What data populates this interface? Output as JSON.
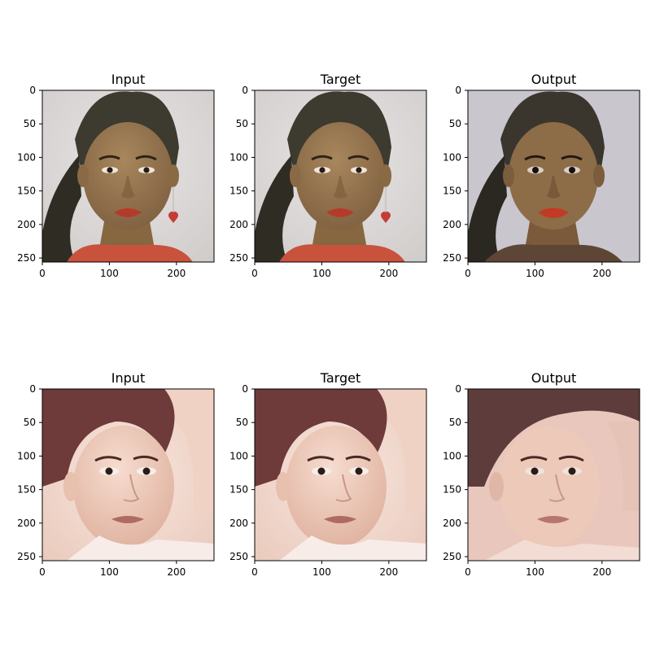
{
  "figure": {
    "rows": [
      {
        "panels": [
          {
            "title": "Input",
            "image": "portrait-woman-dark-hair-red-lips-heart-earring"
          },
          {
            "title": "Target",
            "image": "portrait-woman-dark-hair-red-lips-heart-earring"
          },
          {
            "title": "Output",
            "image": "portrait-woman-dark-hair-red-lips-reconstructed"
          }
        ]
      },
      {
        "panels": [
          {
            "title": "Input",
            "image": "portrait-woman-brown-hair-arm-raised"
          },
          {
            "title": "Target",
            "image": "portrait-woman-brown-hair-arm-raised"
          },
          {
            "title": "Output",
            "image": "portrait-woman-brown-hair-reconstructed"
          }
        ]
      }
    ],
    "x_ticks": [
      "0",
      "100",
      "200"
    ],
    "y_ticks": [
      "0",
      "50",
      "100",
      "150",
      "200",
      "250"
    ]
  },
  "palette": {
    "bg_face1": "#d8d6d6",
    "hair_face1": "#3d3a30",
    "skin_face1": "#9a7a52",
    "lips": "#b63a2a",
    "shirt": "#c8523c",
    "bg_face2": "#f3dcd0",
    "hair_face2": "#6e3a3a",
    "skin_face2": "#f0cfbf",
    "eye": "#2a1c18"
  }
}
